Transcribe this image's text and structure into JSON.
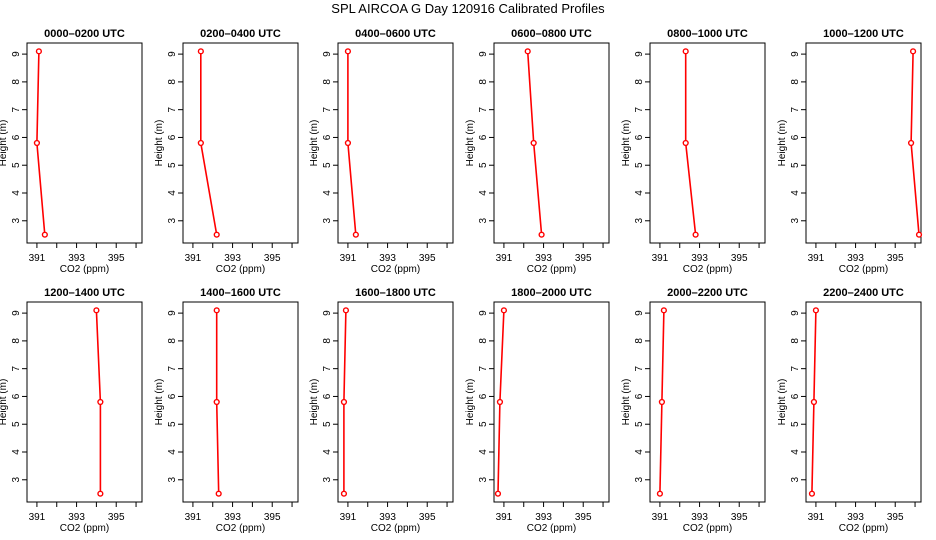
{
  "title": "SPL AIRCOA G  Day 120916  Calibrated Profiles",
  "chart_data": [
    {
      "type": "line",
      "title": "0000–0200 UTC",
      "xlabel": "CO2 (ppm)",
      "ylabel": "Height (m)",
      "xlim": [
        390.5,
        396.3
      ],
      "ylim": [
        2.2,
        9.4
      ],
      "x_ticks": [
        391,
        393,
        395
      ],
      "y_ticks": [
        3,
        4,
        5,
        6,
        7,
        8,
        9
      ],
      "series": [
        {
          "color": "#ff0000",
          "x": [
            391.1,
            391.0,
            391.4
          ],
          "y": [
            9.1,
            5.8,
            2.5
          ]
        }
      ]
    },
    {
      "type": "line",
      "title": "0200–0400 UTC",
      "xlabel": "CO2 (ppm)",
      "ylabel": "Height (m)",
      "xlim": [
        390.5,
        396.3
      ],
      "ylim": [
        2.2,
        9.4
      ],
      "x_ticks": [
        391,
        393,
        395
      ],
      "y_ticks": [
        3,
        4,
        5,
        6,
        7,
        8,
        9
      ],
      "series": [
        {
          "color": "#ff0000",
          "x": [
            391.4,
            391.4,
            392.2
          ],
          "y": [
            9.1,
            5.8,
            2.5
          ]
        }
      ]
    },
    {
      "type": "line",
      "title": "0400–0600 UTC",
      "xlabel": "CO2 (ppm)",
      "ylabel": "Height (m)",
      "xlim": [
        390.5,
        396.3
      ],
      "ylim": [
        2.2,
        9.4
      ],
      "x_ticks": [
        391,
        393,
        395
      ],
      "y_ticks": [
        3,
        4,
        5,
        6,
        7,
        8,
        9
      ],
      "series": [
        {
          "color": "#ff0000",
          "x": [
            391.0,
            391.0,
            391.4
          ],
          "y": [
            9.1,
            5.8,
            2.5
          ]
        }
      ]
    },
    {
      "type": "line",
      "title": "0600–0800 UTC",
      "xlabel": "CO2 (ppm)",
      "ylabel": "Height (m)",
      "xlim": [
        390.5,
        396.3
      ],
      "ylim": [
        2.2,
        9.4
      ],
      "x_ticks": [
        391,
        393,
        395
      ],
      "y_ticks": [
        3,
        4,
        5,
        6,
        7,
        8,
        9
      ],
      "series": [
        {
          "color": "#ff0000",
          "x": [
            392.2,
            392.5,
            392.9
          ],
          "y": [
            9.1,
            5.8,
            2.5
          ]
        }
      ]
    },
    {
      "type": "line",
      "title": "0800–1000 UTC",
      "xlabel": "CO2 (ppm)",
      "ylabel": "Height (m)",
      "xlim": [
        390.5,
        396.3
      ],
      "ylim": [
        2.2,
        9.4
      ],
      "x_ticks": [
        391,
        393,
        395
      ],
      "y_ticks": [
        3,
        4,
        5,
        6,
        7,
        8,
        9
      ],
      "series": [
        {
          "color": "#ff0000",
          "x": [
            392.3,
            392.3,
            392.8
          ],
          "y": [
            9.1,
            5.8,
            2.5
          ]
        }
      ]
    },
    {
      "type": "line",
      "title": "1000–1200 UTC",
      "xlabel": "CO2 (ppm)",
      "ylabel": "Height (m)",
      "xlim": [
        390.5,
        396.3
      ],
      "ylim": [
        2.2,
        9.4
      ],
      "x_ticks": [
        391,
        393,
        395
      ],
      "y_ticks": [
        3,
        4,
        5,
        6,
        7,
        8,
        9
      ],
      "series": [
        {
          "color": "#ff0000",
          "x": [
            395.9,
            395.8,
            396.2
          ],
          "y": [
            9.1,
            5.8,
            2.5
          ]
        }
      ]
    },
    {
      "type": "line",
      "title": "1200–1400 UTC",
      "xlabel": "CO2 (ppm)",
      "ylabel": "Height (m)",
      "xlim": [
        390.5,
        396.3
      ],
      "ylim": [
        2.2,
        9.4
      ],
      "x_ticks": [
        391,
        393,
        395
      ],
      "y_ticks": [
        3,
        4,
        5,
        6,
        7,
        8,
        9
      ],
      "series": [
        {
          "color": "#ff0000",
          "x": [
            394.0,
            394.2,
            394.2
          ],
          "y": [
            9.1,
            5.8,
            2.5
          ]
        }
      ]
    },
    {
      "type": "line",
      "title": "1400–1600 UTC",
      "xlabel": "CO2 (ppm)",
      "ylabel": "Height (m)",
      "xlim": [
        390.5,
        396.3
      ],
      "ylim": [
        2.2,
        9.4
      ],
      "x_ticks": [
        391,
        393,
        395
      ],
      "y_ticks": [
        3,
        4,
        5,
        6,
        7,
        8,
        9
      ],
      "series": [
        {
          "color": "#ff0000",
          "x": [
            392.2,
            392.2,
            392.3
          ],
          "y": [
            9.1,
            5.8,
            2.5
          ]
        }
      ]
    },
    {
      "type": "line",
      "title": "1600–1800 UTC",
      "xlabel": "CO2 (ppm)",
      "ylabel": "Height (m)",
      "xlim": [
        390.5,
        396.3
      ],
      "ylim": [
        2.2,
        9.4
      ],
      "x_ticks": [
        391,
        393,
        395
      ],
      "y_ticks": [
        3,
        4,
        5,
        6,
        7,
        8,
        9
      ],
      "series": [
        {
          "color": "#ff0000",
          "x": [
            390.9,
            390.8,
            390.8
          ],
          "y": [
            9.1,
            5.8,
            2.5
          ]
        }
      ]
    },
    {
      "type": "line",
      "title": "1800–2000 UTC",
      "xlabel": "CO2 (ppm)",
      "ylabel": "Height (m)",
      "xlim": [
        390.5,
        396.3
      ],
      "ylim": [
        2.2,
        9.4
      ],
      "x_ticks": [
        391,
        393,
        395
      ],
      "y_ticks": [
        3,
        4,
        5,
        6,
        7,
        8,
        9
      ],
      "series": [
        {
          "color": "#ff0000",
          "x": [
            391.0,
            390.8,
            390.7
          ],
          "y": [
            9.1,
            5.8,
            2.5
          ]
        }
      ]
    },
    {
      "type": "line",
      "title": "2000–2200 UTC",
      "xlabel": "CO2 (ppm)",
      "ylabel": "Height (m)",
      "xlim": [
        390.5,
        396.3
      ],
      "ylim": [
        2.2,
        9.4
      ],
      "x_ticks": [
        391,
        393,
        395
      ],
      "y_ticks": [
        3,
        4,
        5,
        6,
        7,
        8,
        9
      ],
      "series": [
        {
          "color": "#ff0000",
          "x": [
            391.2,
            391.1,
            391.0
          ],
          "y": [
            9.1,
            5.8,
            2.5
          ]
        }
      ]
    },
    {
      "type": "line",
      "title": "2200–2400 UTC",
      "xlabel": "CO2 (ppm)",
      "ylabel": "Height (m)",
      "xlim": [
        390.5,
        396.3
      ],
      "ylim": [
        2.2,
        9.4
      ],
      "x_ticks": [
        391,
        393,
        395
      ],
      "y_ticks": [
        3,
        4,
        5,
        6,
        7,
        8,
        9
      ],
      "series": [
        {
          "color": "#ff0000",
          "x": [
            391.0,
            390.9,
            390.8
          ],
          "y": [
            9.1,
            5.8,
            2.5
          ]
        }
      ]
    }
  ]
}
